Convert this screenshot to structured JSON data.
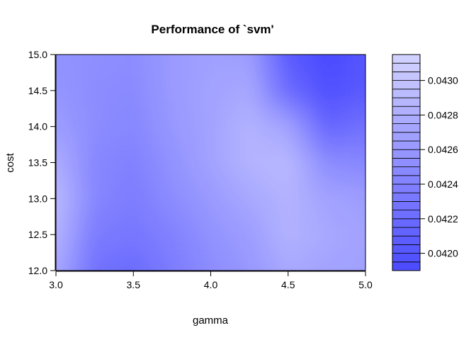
{
  "chart_data": {
    "type": "heatmap",
    "title": "Performance of `svm'",
    "xlabel": "gamma",
    "ylabel": "cost",
    "xlim": [
      3.0,
      5.0
    ],
    "ylim": [
      12.0,
      15.0
    ],
    "x_ticks": [
      "3.0",
      "3.5",
      "4.0",
      "4.5",
      "5.0"
    ],
    "y_ticks": [
      "12.0",
      "12.5",
      "13.0",
      "13.5",
      "14.0",
      "14.5",
      "15.0"
    ],
    "colorbar": {
      "min": 0.0419,
      "max": 0.04315,
      "levels": 25,
      "ticks": [
        "0.0420",
        "0.0422",
        "0.0424",
        "0.0426",
        "0.0428",
        "0.0430"
      ],
      "low_color": "#4a4aff",
      "high_color": "#d4d4ff"
    },
    "gamma": [
      3.0,
      3.25,
      3.5,
      3.75,
      4.0,
      4.25,
      4.5,
      4.75,
      5.0
    ],
    "cost": [
      12.0,
      12.5,
      13.0,
      13.5,
      14.0,
      14.5,
      15.0
    ],
    "error": [
      [
        0.04275,
        0.04225,
        0.0422,
        0.04235,
        0.0425,
        0.0426,
        0.04275,
        0.0427,
        0.04268
      ],
      [
        0.04285,
        0.04235,
        0.0423,
        0.0424,
        0.04255,
        0.04265,
        0.04285,
        0.04275,
        0.0427
      ],
      [
        0.0429,
        0.04245,
        0.04235,
        0.0425,
        0.04262,
        0.04275,
        0.04285,
        0.0427,
        0.04265
      ],
      [
        0.0428,
        0.04245,
        0.0424,
        0.04255,
        0.0427,
        0.04285,
        0.0429,
        0.0425,
        0.04245
      ],
      [
        0.04265,
        0.0425,
        0.04245,
        0.0426,
        0.0427,
        0.04285,
        0.0427,
        0.04215,
        0.04225
      ],
      [
        0.04258,
        0.0425,
        0.04248,
        0.04262,
        0.0427,
        0.04275,
        0.0422,
        0.04195,
        0.04205
      ],
      [
        0.04255,
        0.04252,
        0.0425,
        0.04262,
        0.04268,
        0.04265,
        0.04205,
        0.0419,
        0.042
      ]
    ]
  }
}
